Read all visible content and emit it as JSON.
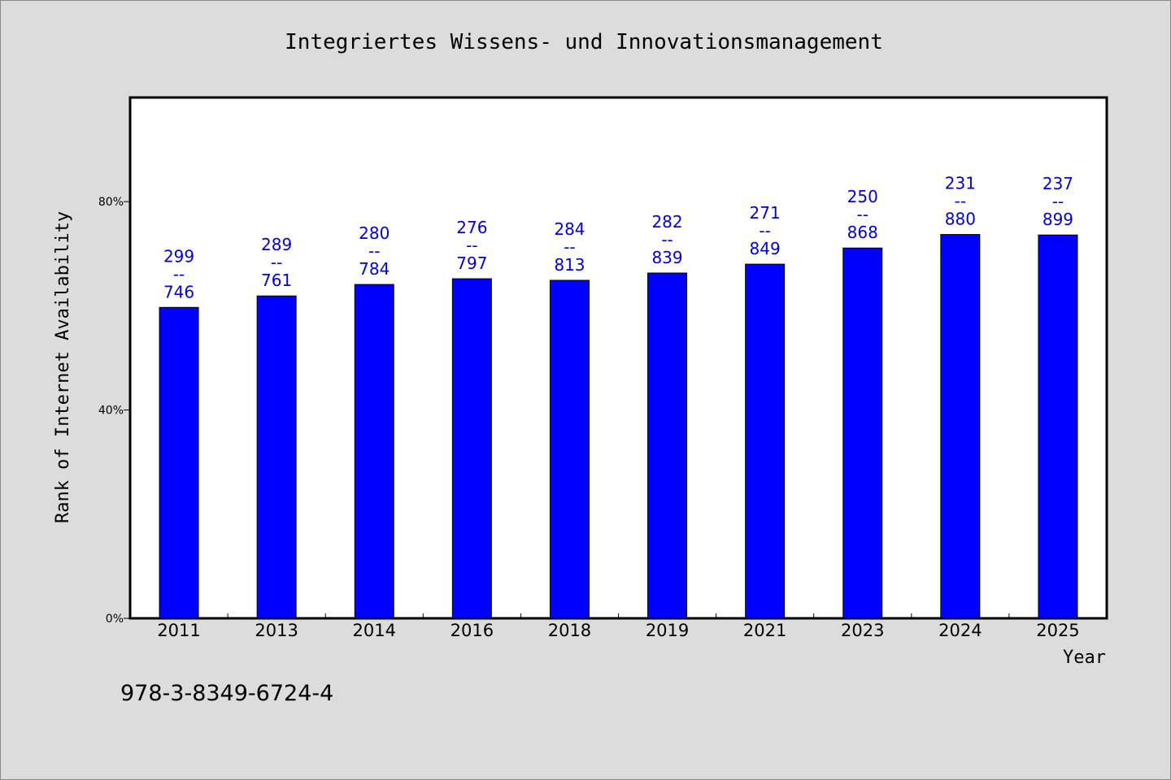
{
  "chart_data": {
    "type": "bar",
    "title": "Integriertes Wissens- und Innovationsmanagement",
    "xlabel": "Year",
    "ylabel": "Rank of Internet Availability",
    "ylim": [
      0,
      100
    ],
    "yticks": [
      0,
      40,
      80
    ],
    "ytick_labels": [
      "0%",
      "40%",
      "80%"
    ],
    "grid": false,
    "categories": [
      "2011",
      "2013",
      "2014",
      "2016",
      "2018",
      "2019",
      "2021",
      "2023",
      "2024",
      "2025"
    ],
    "values": [
      59.7,
      61.9,
      64.1,
      65.2,
      64.9,
      66.3,
      68.0,
      71.1,
      73.7,
      73.6
    ],
    "data_labels": [
      [
        "299",
        "--",
        "746"
      ],
      [
        "289",
        "--",
        "761"
      ],
      [
        "280",
        "--",
        "784"
      ],
      [
        "276",
        "--",
        "797"
      ],
      [
        "284",
        "--",
        "813"
      ],
      [
        "282",
        "--",
        "839"
      ],
      [
        "271",
        "--",
        "849"
      ],
      [
        "250",
        "--",
        "868"
      ],
      [
        "231",
        "--",
        "880"
      ],
      [
        "237",
        "--",
        "899"
      ]
    ],
    "bar_color": "#0000ff",
    "label_color": "#0000cc"
  },
  "footer_text": "978-3-8349-6724-4"
}
